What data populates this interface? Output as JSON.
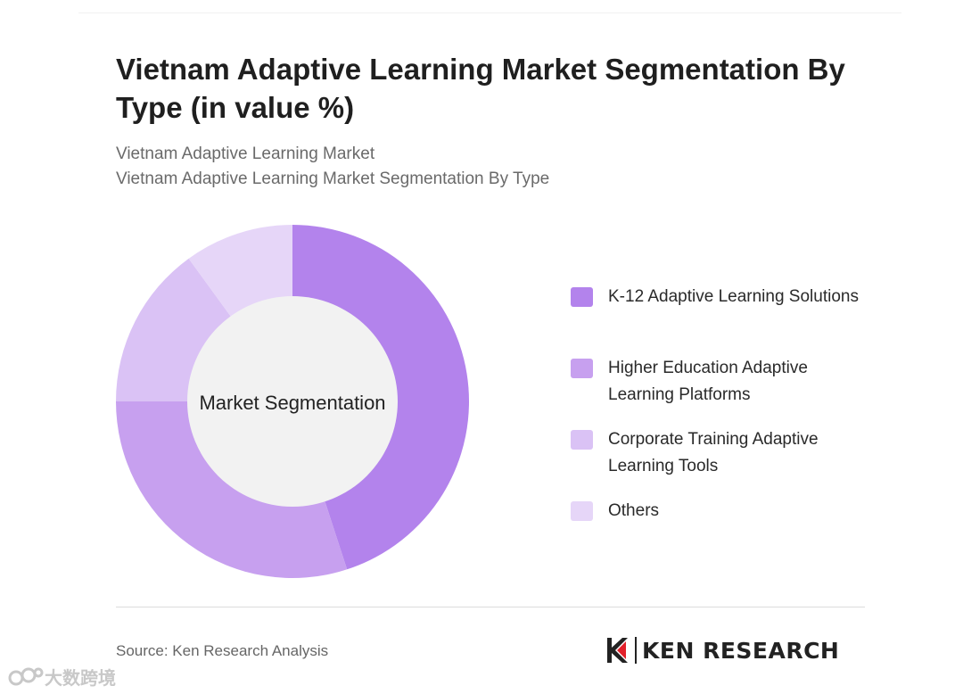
{
  "title": "Vietnam Adaptive Learning Market Segmentation By Type (in value %)",
  "breadcrumb": [
    "Vietnam Adaptive Learning Market",
    "Vietnam Adaptive Learning Market Segmentation By Type"
  ],
  "chart_data": {
    "type": "pie",
    "style": "donut",
    "center_label": "Market Segmentation",
    "legend_position": "right",
    "categories": [
      "K-12 Adaptive Learning Solutions",
      "Higher Education Adaptive Learning Platforms",
      "Corporate Training Adaptive Learning Tools",
      "Others"
    ],
    "values": [
      45,
      30,
      15,
      10
    ],
    "colors": [
      "#b383ec",
      "#c7a0ef",
      "#dac2f5",
      "#e6d6f8"
    ]
  },
  "source": "Source: Ken Research Analysis",
  "logo": {
    "text": "KEN RESEARCH",
    "icon": "ken-research-logo-icon"
  },
  "watermark": {
    "text": "大数跨境",
    "icon": "watermark-logo-icon"
  },
  "colors": {
    "center_fill": "#f2f2f2",
    "divider": "#dcdcdc"
  }
}
